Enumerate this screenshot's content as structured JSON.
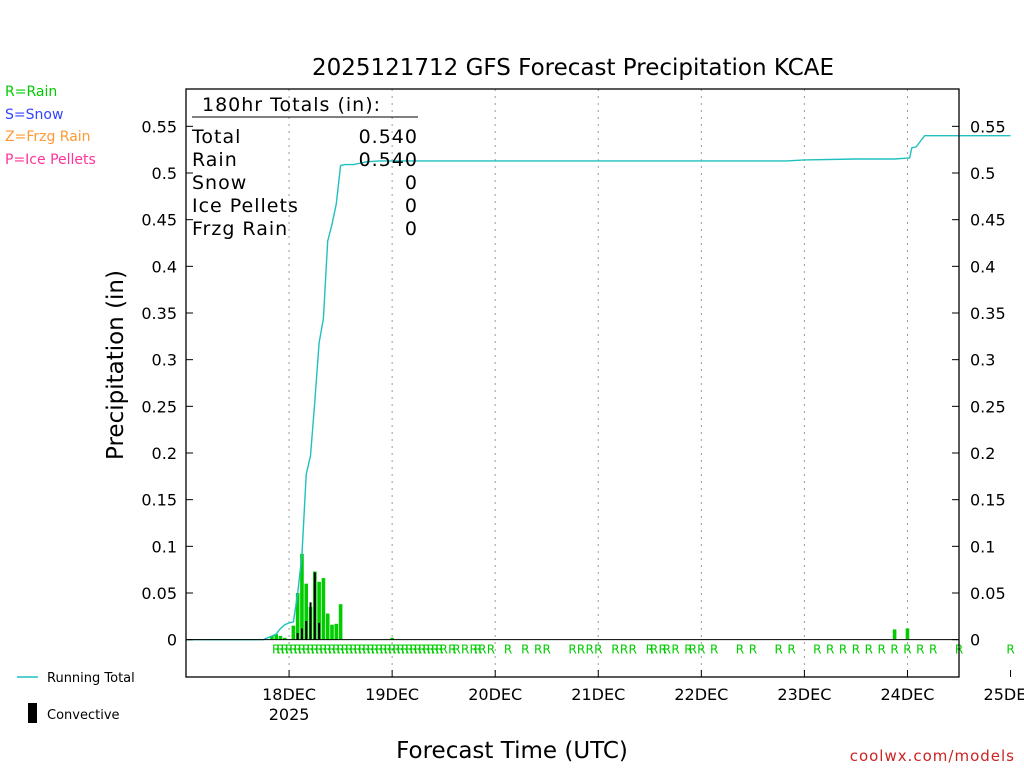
{
  "chart_data": {
    "type": "bar+line",
    "title": "2025121712 GFS Forecast Precipitation KCAE",
    "ylabel": "Precipitation (in)",
    "xlabel": "Forecast Time (UTC)",
    "ylim": [
      -0.04,
      0.59
    ],
    "yticks": [
      "0",
      "0.05",
      "0.1",
      "0.15",
      "0.2",
      "0.25",
      "0.3",
      "0.35",
      "0.4",
      "0.45",
      "0.5",
      "0.55"
    ],
    "xlim_hours": [
      -12,
      168
    ],
    "xticks": [
      {
        "label": "18DEC",
        "sub": "2025",
        "hour": 12
      },
      {
        "label": "19DEC",
        "sub": "",
        "hour": 36
      },
      {
        "label": "20DEC",
        "sub": "",
        "hour": 60
      },
      {
        "label": "21DEC",
        "sub": "",
        "hour": 84
      },
      {
        "label": "22DEC",
        "sub": "",
        "hour": 108
      },
      {
        "label": "23DEC",
        "sub": "",
        "hour": 132
      },
      {
        "label": "24DEC",
        "sub": "",
        "hour": 156
      },
      {
        "label": "25DEC",
        "sub": "",
        "hour": 180
      }
    ],
    "totals": {
      "heading": "180hr Totals (in):",
      "rows": [
        {
          "label": "Total",
          "value": "0.540"
        },
        {
          "label": "Rain",
          "value": "0.540"
        },
        {
          "label": "Snow",
          "value": "0"
        },
        {
          "label": "Ice Pellets",
          "value": "0"
        },
        {
          "label": "Frzg Rain",
          "value": "0"
        }
      ]
    },
    "ptype_legend": [
      {
        "text": "R=Rain",
        "color": "#00cc00"
      },
      {
        "text": "S=Snow",
        "color": "#3344ff"
      },
      {
        "text": "Z=Frzg Rain",
        "color": "#ff9933"
      },
      {
        "text": "P=Ice Pellets",
        "color": "#ff3399"
      }
    ],
    "series_legend": {
      "running_total": "Running Total",
      "convective": "Convective"
    },
    "credit": "coolwx.com/models",
    "colors": {
      "line": "#20c0c0",
      "rain": "#00cc00",
      "convective": "#000000",
      "credit": "#cc2222",
      "grid": "#999999"
    },
    "running_total": {
      "hours": [
        -12,
        3,
        6,
        7,
        9,
        10,
        11,
        12,
        13,
        14,
        15,
        16,
        17,
        18,
        19,
        20,
        21,
        22,
        23,
        24,
        25,
        27,
        28,
        30,
        33,
        39,
        48,
        60,
        96,
        128,
        132,
        144,
        153,
        156,
        156.5,
        157,
        158,
        160,
        161,
        180
      ],
      "values": [
        0,
        0,
        0,
        0.002,
        0.006,
        0.012,
        0.016,
        0.018,
        0.019,
        0.05,
        0.09,
        0.177,
        0.197,
        0.255,
        0.318,
        0.344,
        0.427,
        0.445,
        0.467,
        0.508,
        0.509,
        0.509,
        0.51,
        0.512,
        0.513,
        0.513,
        0.513,
        0.513,
        0.513,
        0.513,
        0.514,
        0.515,
        0.515,
        0.516,
        0.516,
        0.527,
        0.528,
        0.54,
        0.54,
        0.54
      ]
    },
    "rain_bars": {
      "hours": [
        8,
        9,
        10,
        11,
        13,
        14,
        15,
        16,
        17,
        18,
        19,
        20,
        21,
        22,
        23,
        24,
        36,
        153,
        156
      ],
      "values": [
        0.004,
        0.006,
        0.004,
        0.002,
        0.015,
        0.05,
        0.092,
        0.06,
        0.035,
        0.073,
        0.062,
        0.066,
        0.028,
        0.016,
        0.017,
        0.038,
        0.002,
        0.011,
        0.012
      ]
    },
    "convective_bars": {
      "hours": [
        14,
        15,
        16,
        17,
        18,
        19
      ],
      "values": [
        0.007,
        0.012,
        0.02,
        0.04,
        0.072,
        0.018
      ]
    },
    "ptype_marks": {
      "label": "R",
      "hours": [
        9,
        10,
        11,
        12,
        13,
        14,
        15,
        16,
        17,
        18,
        19,
        20,
        21,
        22,
        23,
        24,
        25,
        26,
        27,
        28,
        29,
        30,
        31,
        32,
        33,
        34,
        35,
        36,
        37,
        38,
        39,
        40,
        41,
        42,
        43,
        44,
        45,
        46,
        47,
        48,
        50,
        51,
        53,
        55,
        56,
        57,
        59,
        63,
        67,
        70,
        72,
        78,
        80,
        82,
        84,
        88,
        90,
        92,
        96,
        97,
        99,
        100,
        102,
        105,
        106,
        108,
        111,
        117,
        120,
        126,
        129,
        135,
        138,
        141,
        144,
        147,
        150,
        153,
        156,
        159,
        162,
        168,
        180
      ]
    }
  }
}
